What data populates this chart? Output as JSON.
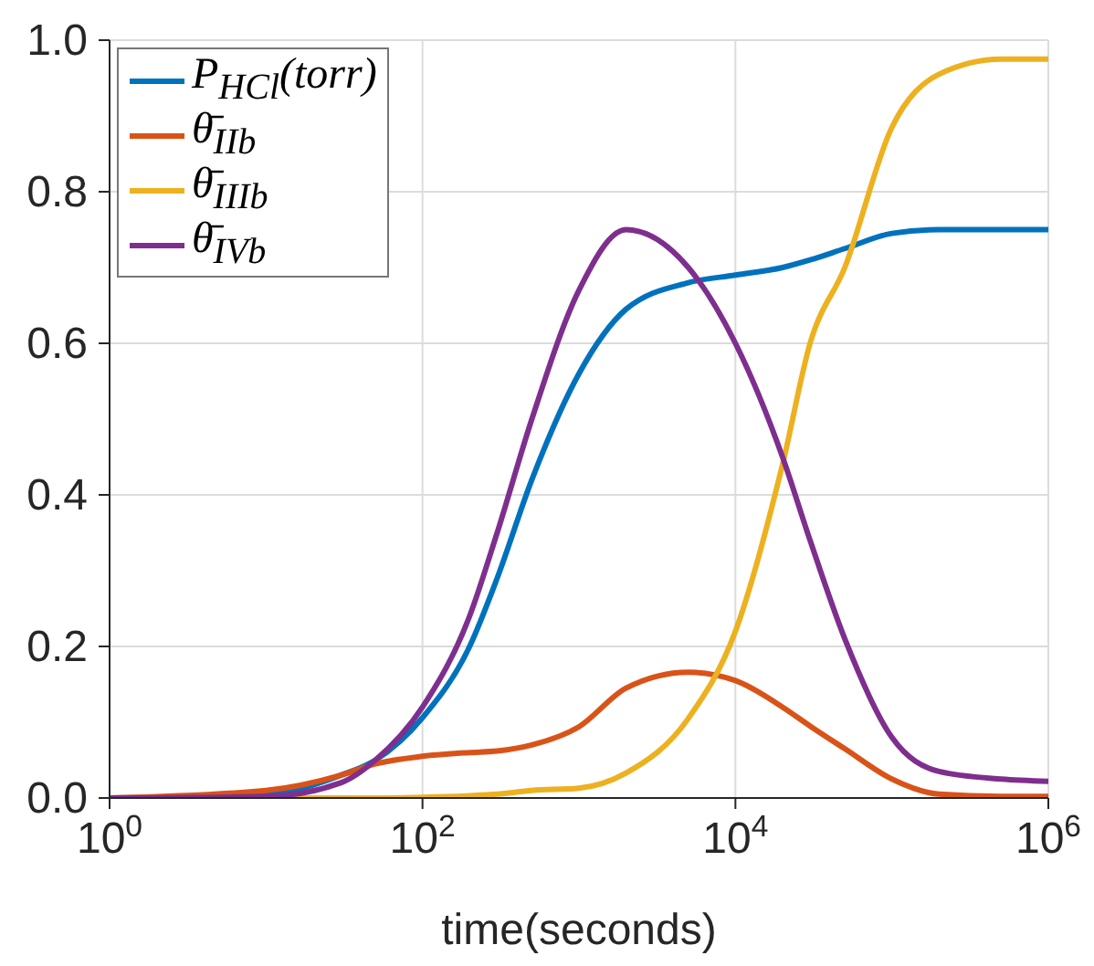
{
  "chart_data": {
    "type": "line",
    "xlabel": "time(seconds)",
    "log": "x",
    "grid": true,
    "legend": "top left",
    "marker": "none",
    "line_style": "solid",
    "x": [
      1,
      10,
      30,
      50,
      100,
      200,
      300,
      500,
      1000,
      2000,
      5000,
      10000,
      20000,
      30000,
      50000,
      100000,
      200000,
      500000,
      1000000
    ],
    "xlim": [
      1,
      1000000
    ],
    "xticks": [
      {
        "value": 1,
        "label": "10$^{0}$"
      },
      {
        "value": 100,
        "label": "10$^{2}$"
      },
      {
        "value": 10000,
        "label": "10$^{4}$"
      },
      {
        "value": 1000000,
        "label": "10$^{6}$"
      }
    ],
    "ylim": [
      0,
      1
    ],
    "yticks": [
      {
        "value": 0,
        "label": "0.0"
      },
      {
        "value": 0.2,
        "label": "0.2"
      },
      {
        "value": 0.4,
        "label": "0.4"
      },
      {
        "value": 0.6,
        "label": "0.6"
      },
      {
        "value": 0.8,
        "label": "0.8"
      },
      {
        "value": 1,
        "label": "1.0"
      }
    ],
    "series": [
      {
        "name": "P$_{HCl}$(torr)",
        "color": "#0072bd",
        "values": [
          0,
          0.005,
          0.03,
          0.05,
          0.106,
          0.2,
          0.29,
          0.42,
          0.56,
          0.645,
          0.68,
          0.69,
          0.7,
          0.71,
          0.725,
          0.745,
          0.75,
          0.75,
          0.75
        ]
      },
      {
        "name": "θ̄$_{IIb}$",
        "color": "#d95319",
        "values": [
          0,
          0.01,
          0.03,
          0.045,
          0.055,
          0.06,
          0.062,
          0.07,
          0.094,
          0.145,
          0.166,
          0.155,
          0.12,
          0.095,
          0.065,
          0.025,
          0.005,
          0.002,
          0.002
        ]
      },
      {
        "name": "θ̄$_{IIIb}$",
        "color": "#edb120",
        "values": [
          0,
          0,
          0,
          0,
          0.001,
          0.003,
          0.005,
          0.01,
          0.013,
          0.033,
          0.105,
          0.22,
          0.44,
          0.6,
          0.7,
          0.885,
          0.955,
          0.975,
          0.975
        ]
      },
      {
        "name": "θ̄$_{IVb}$",
        "color": "#7e2f8e",
        "values": [
          0,
          0.002,
          0.02,
          0.05,
          0.12,
          0.24,
          0.35,
          0.5,
          0.67,
          0.75,
          0.7,
          0.6,
          0.45,
          0.34,
          0.21,
          0.08,
          0.035,
          0.025,
          0.022
        ]
      }
    ]
  }
}
